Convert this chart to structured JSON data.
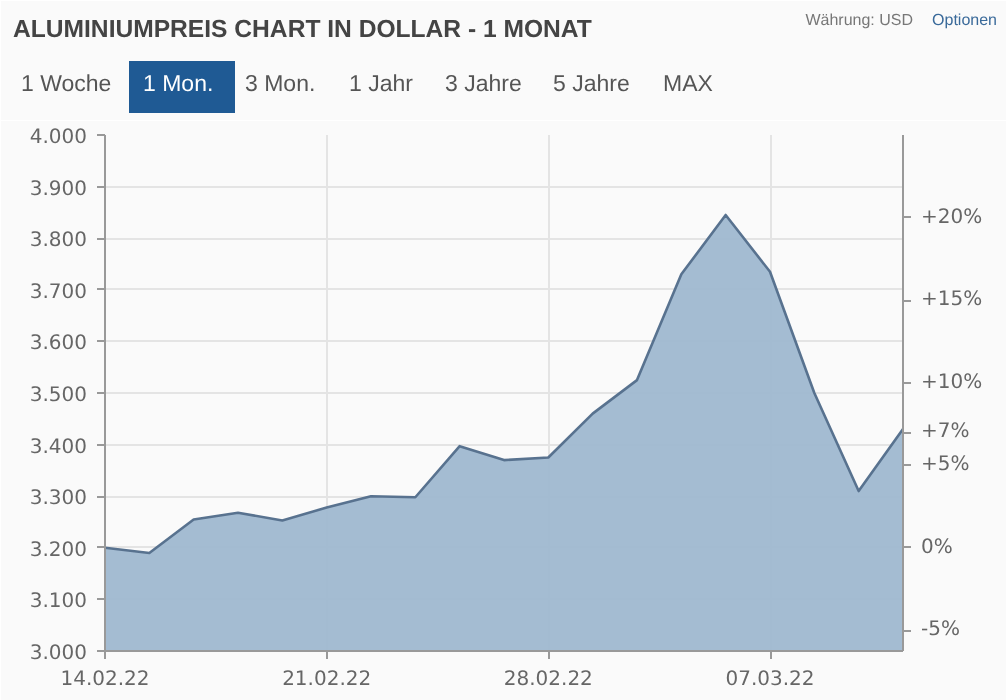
{
  "chart_data": {
    "type": "area",
    "title": "ALUMINIUMPREIS CHART IN DOLLAR - 1 MONAT",
    "categories": [
      "14.02.22",
      null,
      null,
      null,
      null,
      "21.02.22",
      null,
      null,
      null,
      null,
      "28.02.22",
      null,
      null,
      null,
      null,
      "07.03.22",
      null,
      null,
      null
    ],
    "series": [
      {
        "color": "#58728f",
        "values": [
          3200,
          3190,
          3255,
          3268,
          3253,
          3278,
          3300,
          3298,
          3397,
          3370,
          3375,
          3460,
          3525,
          3730,
          3845,
          3735,
          3500,
          3310,
          3430
        ]
      }
    ],
    "ylim": [
      3000,
      4000
    ],
    "yticks": [
      {
        "value": 3000,
        "label": "3.000"
      },
      {
        "value": 3100,
        "label": "3.100"
      },
      {
        "value": 3200,
        "label": "3.200"
      },
      {
        "value": 3300,
        "label": "3.300"
      },
      {
        "value": 3400,
        "label": "3.400"
      },
      {
        "value": 3500,
        "label": "3.500"
      },
      {
        "value": 3600,
        "label": "3.600"
      },
      {
        "value": 3700,
        "label": "3.700"
      },
      {
        "value": 3800,
        "label": "3.800"
      },
      {
        "value": 3900,
        "label": "3.900"
      },
      {
        "value": 4000,
        "label": "4.000"
      }
    ],
    "y2lim": [
      -6.25,
      25
    ],
    "y2ticks": [
      {
        "value": -5,
        "label": "-5%"
      },
      {
        "value": 0,
        "label": "0%"
      },
      {
        "value": 5,
        "label": "+5%"
      },
      {
        "value": 7,
        "label": "+7%"
      },
      {
        "value": 10,
        "label": "+10%"
      },
      {
        "value": 15,
        "label": "+15%"
      },
      {
        "value": 20,
        "label": "+20%"
      }
    ],
    "annotations": [
      "Währung: USD",
      "Optionen",
      "1 Woche",
      "1 Mon.",
      "3 Mon.",
      "1 Jahr",
      "3 Jahre",
      "5 Jahre",
      "MAX"
    ],
    "grid": true
  }
}
